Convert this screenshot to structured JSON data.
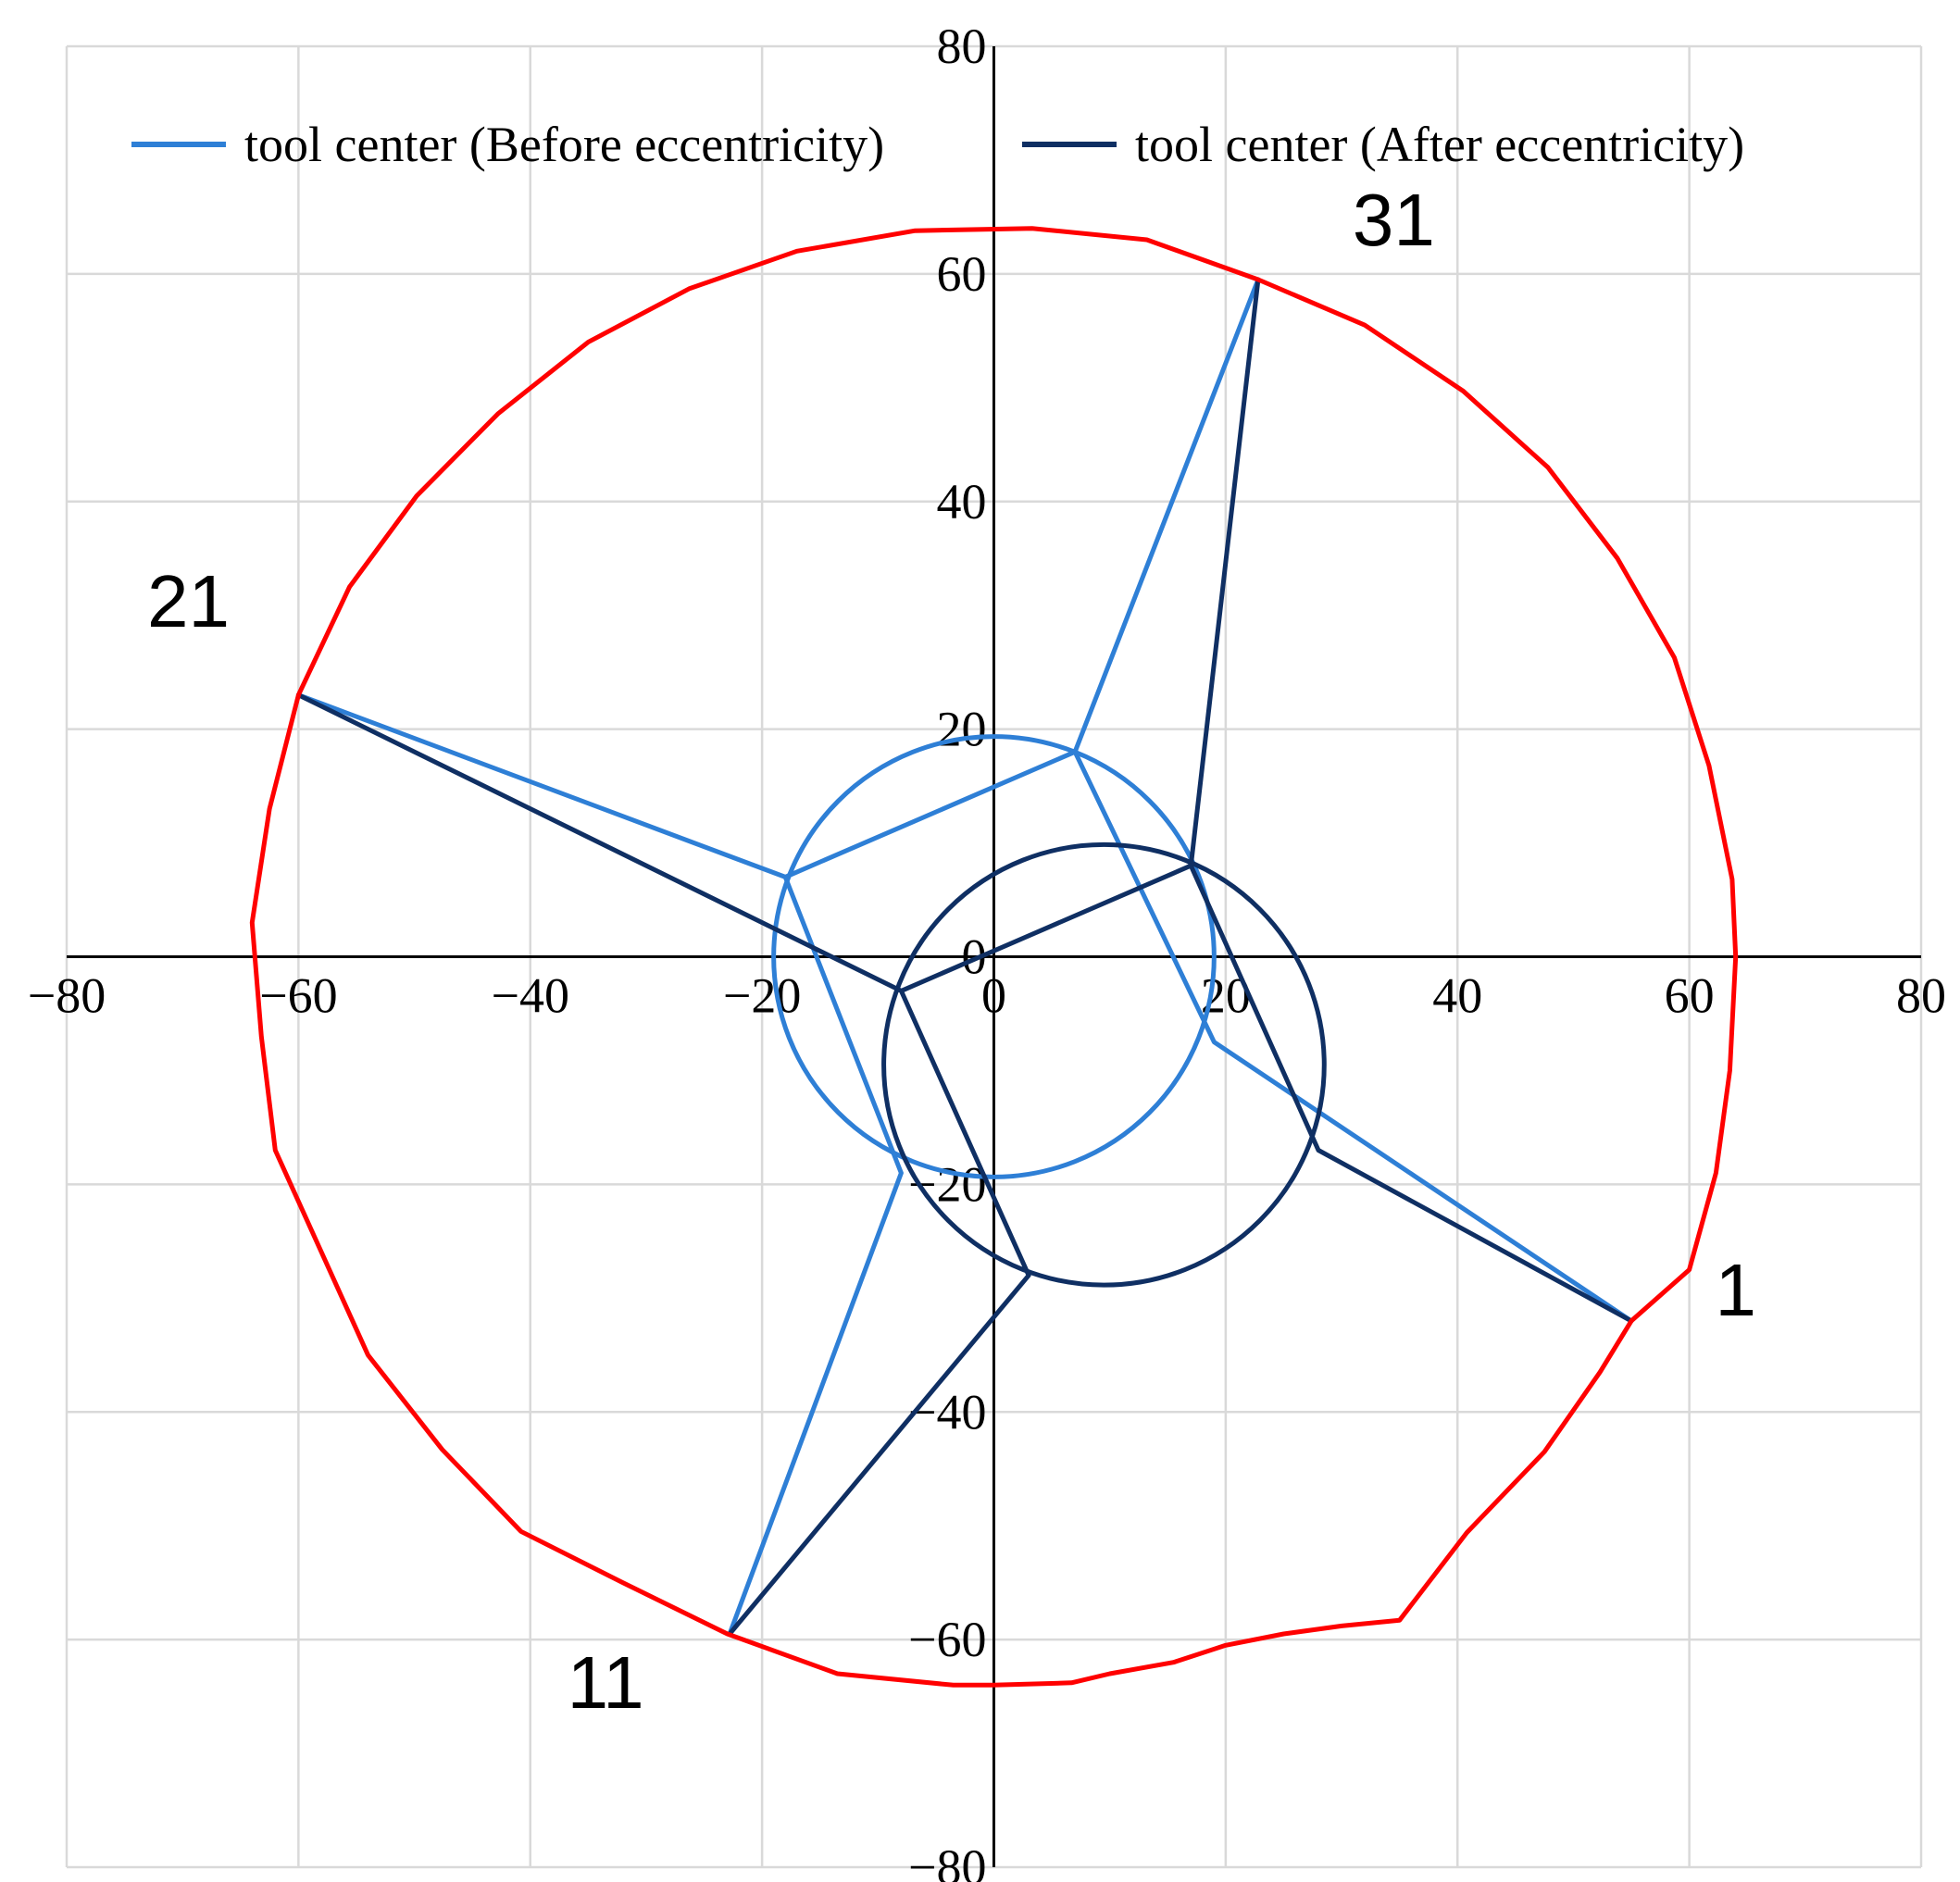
{
  "chart_data": {
    "type": "line",
    "xlim": [
      -80,
      80
    ],
    "ylim": [
      -80,
      80
    ],
    "xticks": [
      "-80",
      "-60",
      "-40",
      "-20",
      "0",
      "20",
      "40",
      "60",
      "80"
    ],
    "yticks": [
      "-80",
      "-60",
      "-40",
      "-20",
      "0",
      "20",
      "40",
      "60",
      "80"
    ],
    "grid": true,
    "legend_position": "top",
    "colors": {
      "outline": "#ff0000",
      "before": "#2e7fd6",
      "after": "#0f2f63",
      "axis": "#000000",
      "grid": "#d9d9d9"
    },
    "series": [
      {
        "name": "tool center (Before eccentricity)",
        "circle": {
          "cx": 0,
          "cy": 0,
          "r": 19
        },
        "points": [
          [
            19,
            -7.5
          ],
          [
            55,
            -32
          ],
          [
            19,
            -7.5
          ],
          [
            7,
            18
          ],
          [
            22.8,
            59.5
          ],
          [
            7,
            18
          ],
          [
            -18,
            7
          ],
          [
            -60,
            23
          ],
          [
            -18,
            7
          ],
          [
            -8,
            -19
          ],
          [
            -22.8,
            -59.5
          ],
          [
            -8,
            -19
          ]
        ]
      },
      {
        "name": "tool center (After eccentricity)",
        "circle": {
          "cx": 9.5,
          "cy": -9.5,
          "r": 19
        },
        "points": [
          [
            28,
            -17
          ],
          [
            55,
            -32
          ],
          [
            28,
            -17
          ],
          [
            17,
            8
          ],
          [
            22.8,
            59.5
          ],
          [
            17,
            8
          ],
          [
            -8,
            -3
          ],
          [
            -60,
            23
          ],
          [
            -8,
            -3
          ],
          [
            3,
            -28
          ],
          [
            -22.8,
            -59.5
          ],
          [
            3,
            -28
          ]
        ]
      },
      {
        "points": [
          [
            64,
            0
          ],
          [
            63.5,
            -10
          ],
          [
            62.3,
            -19
          ],
          [
            60,
            -27.5
          ],
          [
            55,
            -32
          ],
          [
            52.3,
            -36.5
          ],
          [
            47.5,
            -43.5
          ],
          [
            40.8,
            -50.6
          ],
          [
            35,
            -58.3
          ],
          [
            30,
            -58.8
          ],
          [
            25,
            -59.5
          ],
          [
            20,
            -60.5
          ],
          [
            15.5,
            -62
          ],
          [
            10,
            -63
          ],
          [
            6.7,
            -63.8
          ],
          [
            0,
            -64
          ],
          [
            -3.5,
            -64
          ],
          [
            -13.5,
            -63
          ],
          [
            -23,
            -59.5
          ],
          [
            -32,
            -55
          ],
          [
            -40.8,
            -50.5
          ],
          [
            -47.6,
            -43.3
          ],
          [
            -54,
            -35
          ],
          [
            -58,
            -26
          ],
          [
            -62,
            -17
          ],
          [
            -63.2,
            -7
          ],
          [
            -64,
            3
          ],
          [
            -62.5,
            13
          ],
          [
            -60,
            23
          ],
          [
            -55.6,
            32.5
          ],
          [
            -49.8,
            40.5
          ],
          [
            -42.8,
            47.7
          ],
          [
            -35,
            54
          ],
          [
            -26.3,
            58.7
          ],
          [
            -17,
            62
          ],
          [
            -6.8,
            63.8
          ],
          [
            3.3,
            64
          ],
          [
            13.2,
            63
          ],
          [
            22.8,
            59.5
          ],
          [
            32,
            55.5
          ],
          [
            40.5,
            49.7
          ],
          [
            47.8,
            43
          ],
          [
            53.8,
            35
          ],
          [
            58.7,
            26.3
          ],
          [
            61.7,
            16.8
          ],
          [
            63.7,
            6.8
          ],
          [
            64,
            0
          ]
        ]
      }
    ],
    "annotations": [
      {
        "text": "1",
        "x": 64,
        "y": -31.5
      },
      {
        "text": "11",
        "x": -33.5,
        "y": -66
      },
      {
        "text": "21",
        "x": -69.5,
        "y": 29
      },
      {
        "text": "31",
        "x": 34.5,
        "y": 62.5
      }
    ]
  }
}
